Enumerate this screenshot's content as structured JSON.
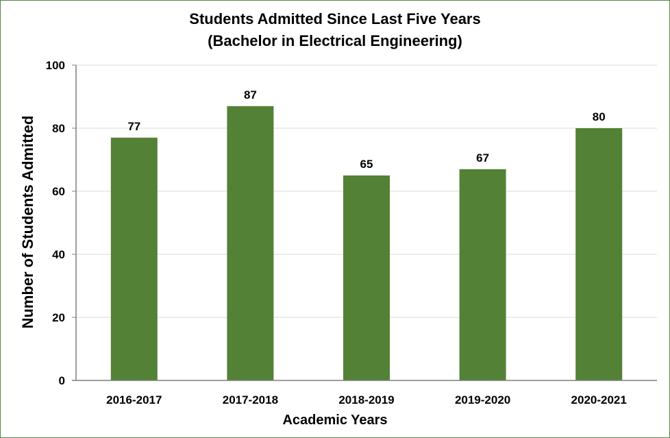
{
  "chart_data": {
    "type": "bar",
    "title_lines": [
      "Students Admitted  Since Last Five Years",
      "(Bachelor in Electrical Engineering)"
    ],
    "xlabel": "Academic Years",
    "ylabel": "Number of Students Admitted",
    "categories": [
      "2016-2017",
      "2017-2018",
      "2018-2019",
      "2019-2020",
      "2020-2021"
    ],
    "values": [
      77,
      87,
      65,
      67,
      80
    ],
    "data_labels": [
      "77",
      "87",
      "65",
      "67",
      "80"
    ],
    "ylim": [
      0,
      100
    ],
    "yticks": [
      0,
      20,
      40,
      60,
      80,
      100
    ],
    "grid": true,
    "legend": "none",
    "colors": {
      "bar": "#538135",
      "grid": "#d9d9d9",
      "axis": "#7f7f7f",
      "border": "#4f8a3c"
    }
  }
}
